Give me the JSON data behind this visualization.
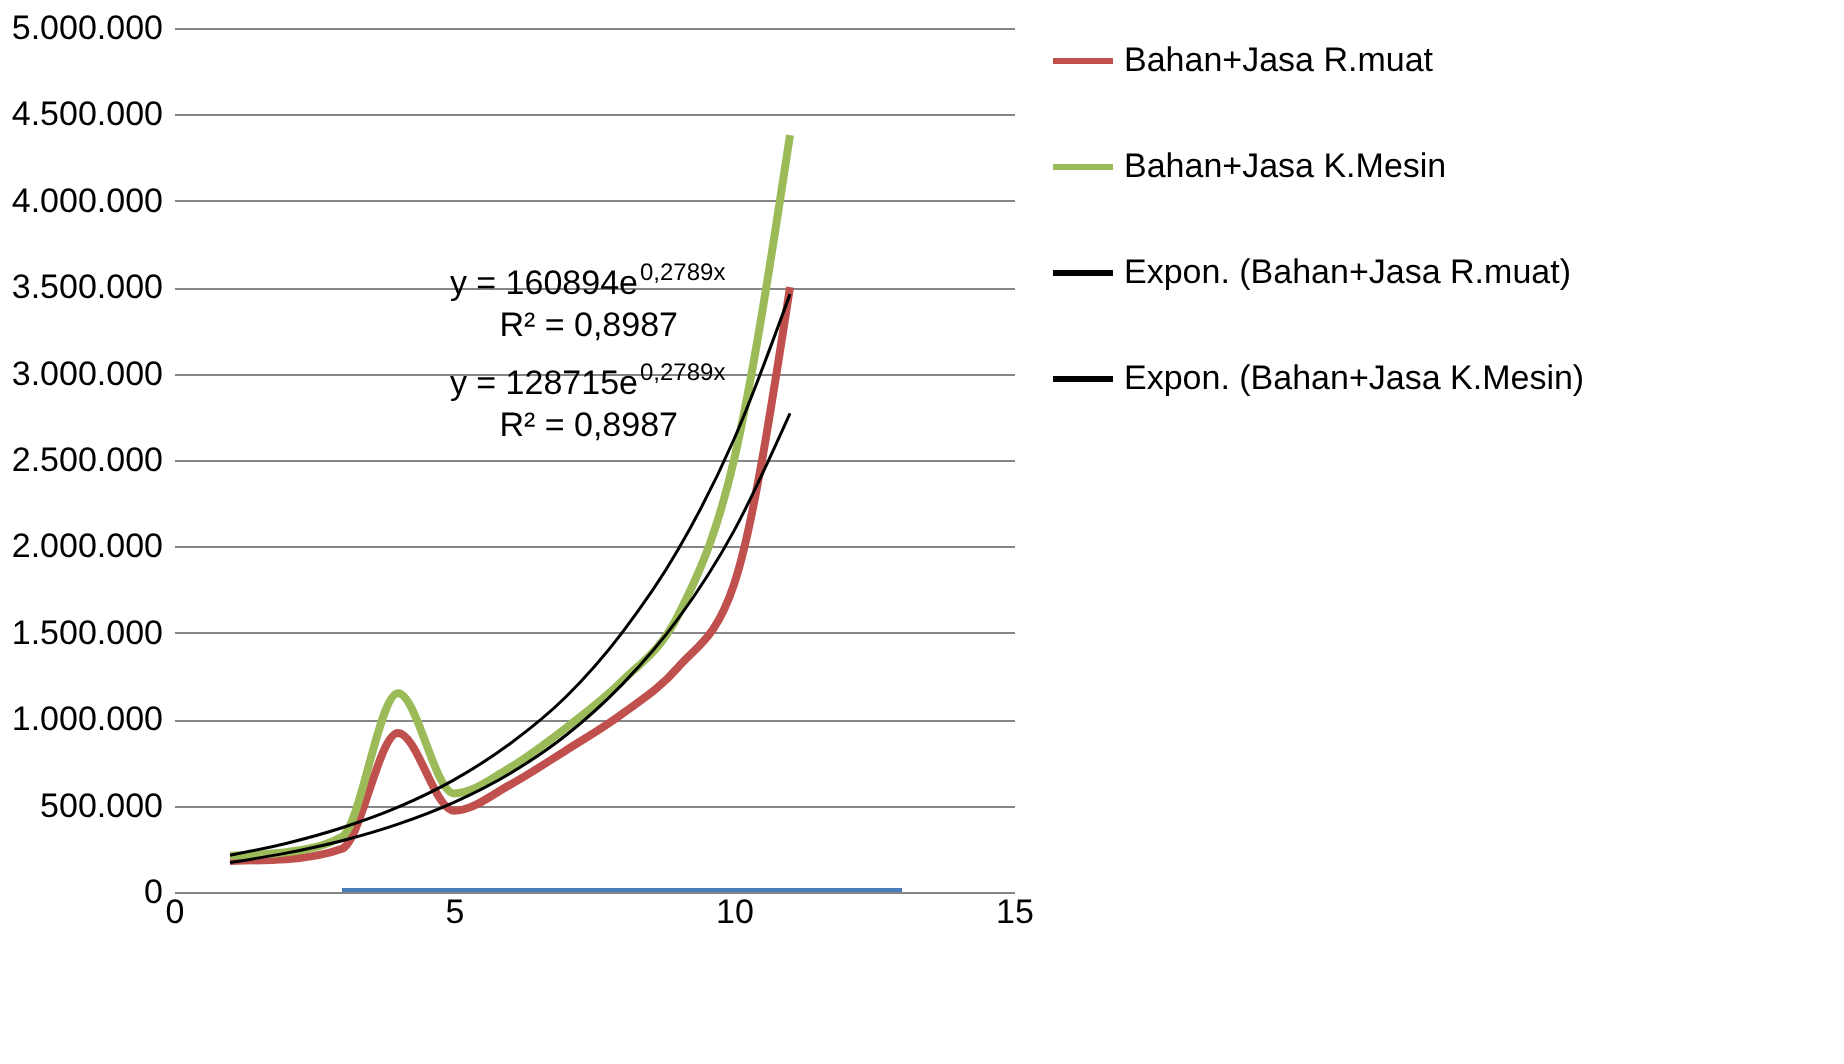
{
  "chart_data": {
    "type": "line",
    "xlim": [
      0,
      15
    ],
    "xticks": [
      0,
      5,
      10,
      15
    ],
    "ylim": [
      0,
      5000000
    ],
    "yticks": [
      {
        "value": 0,
        "label": "0"
      },
      {
        "value": 500000,
        "label": "500.000"
      },
      {
        "value": 1000000,
        "label": "1.000.000"
      },
      {
        "value": 1500000,
        "label": "1.500.000"
      },
      {
        "value": 2000000,
        "label": "2.000.000"
      },
      {
        "value": 2500000,
        "label": "2.500.000"
      },
      {
        "value": 3000000,
        "label": "3.000.000"
      },
      {
        "value": 3500000,
        "label": "3.500.000"
      },
      {
        "value": 4000000,
        "label": "4.000.000"
      },
      {
        "value": 4500000,
        "label": "4.500.000"
      },
      {
        "value": 5000000,
        "label": "5.000.000"
      }
    ],
    "grid": "y",
    "legend": "right",
    "marker": "none",
    "series": [
      {
        "name": "Bahan+Jasa R.muat",
        "color": "#c0504d",
        "x": [
          1,
          2,
          3,
          4,
          5,
          6,
          7,
          8,
          9,
          10,
          11
        ],
        "values": [
          180000,
          190000,
          250000,
          920000,
          470000,
          620000,
          820000,
          1030000,
          1300000,
          1780000,
          3500000
        ]
      },
      {
        "name": "Bahan+Jasa K.Mesin",
        "color": "#9bbb59",
        "x": [
          1,
          2,
          3,
          4,
          5,
          6,
          7,
          8,
          9,
          10,
          11
        ],
        "values": [
          210000,
          230000,
          320000,
          1150000,
          570000,
          720000,
          950000,
          1220000,
          1600000,
          2500000,
          4380000
        ]
      },
      {
        "name": "Expon. (Bahan+Jasa R.muat)",
        "type": "line",
        "color": "#000000",
        "x": [
          1,
          2,
          3,
          4,
          5,
          6,
          7,
          8,
          9,
          10,
          11
        ],
        "values": [
          170000,
          225000,
          297000,
          393000,
          519000,
          686000,
          907000,
          1200000,
          1580000,
          2090000,
          2770000
        ]
      },
      {
        "name": "Expon. (Bahan+Jasa K.Mesin)",
        "type": "line",
        "color": "#000000",
        "x": [
          1,
          2,
          3,
          4,
          5,
          6,
          7,
          8,
          9,
          10,
          11
        ],
        "values": [
          213000,
          281000,
          372000,
          491000,
          649000,
          858000,
          1130000,
          1500000,
          1980000,
          2620000,
          3460000
        ]
      },
      {
        "color": "#4a7ebb",
        "x": [
          3,
          13
        ],
        "values": [
          0,
          0
        ]
      }
    ],
    "annotations": [
      "y = 160894e$^{0,2789x}$",
      "R² = 0,8987",
      "y = 128715e$^{0,2789x}$",
      "R² = 0,8987"
    ]
  }
}
